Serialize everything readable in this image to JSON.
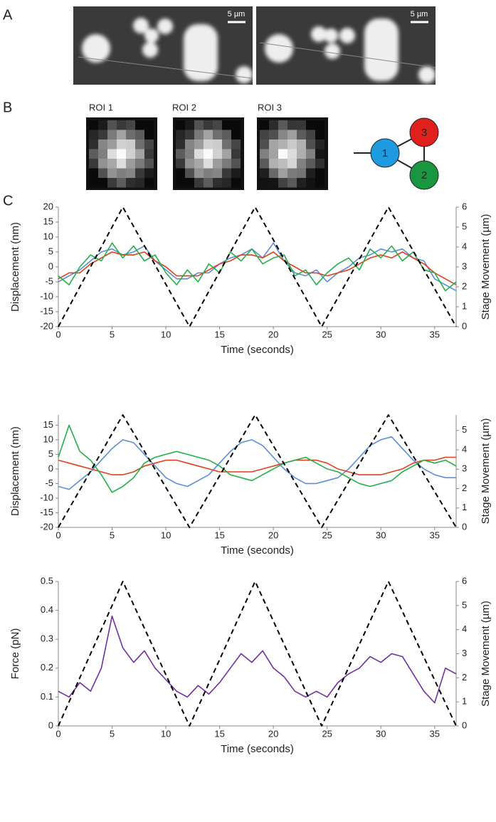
{
  "figure": {
    "panel_labels": [
      "A",
      "B",
      "C"
    ],
    "scale_bars": [
      "5 µm",
      "5 µm"
    ],
    "roi_labels": [
      "ROI 1",
      "ROI 2",
      "ROI 3"
    ],
    "nodes": [
      {
        "label": "1",
        "color": "#1e9be0"
      },
      {
        "label": "3",
        "color": "#e0201c"
      },
      {
        "label": "2",
        "color": "#1a9640"
      }
    ]
  },
  "chart_data": [
    {
      "type": "line",
      "ylabel": "Displacement (nm)",
      "y2label": "Stage Movement (µm)",
      "xlabel": "Time (seconds)",
      "x": [
        0,
        1,
        2,
        3,
        4,
        5,
        6,
        7,
        8,
        9,
        10,
        11,
        12,
        13,
        14,
        15,
        16,
        17,
        18,
        19,
        20,
        21,
        22,
        23,
        24,
        25,
        26,
        27,
        28,
        29,
        30,
        31,
        32,
        33,
        34,
        35,
        36,
        37
      ],
      "xlim": [
        0,
        37
      ],
      "xticks": [
        0,
        5,
        10,
        15,
        20,
        25,
        30,
        35
      ],
      "ylim": [
        -20,
        20
      ],
      "yticks": [
        -20,
        -15,
        -10,
        -5,
        0,
        5,
        10,
        15,
        20
      ],
      "y2lim": [
        0,
        6
      ],
      "y2ticks": [
        0,
        1,
        2,
        3,
        4,
        5,
        6
      ],
      "series": [
        {
          "color": "#5b8ed6",
          "values": [
            -5,
            -3,
            -1,
            2,
            5,
            6,
            4,
            5,
            7,
            2,
            -1,
            -4,
            -4,
            -2,
            -2,
            1,
            3,
            4,
            6,
            3,
            8,
            2,
            -2,
            -3,
            -1,
            -5,
            -2,
            0,
            3,
            4,
            6,
            5,
            6,
            3,
            2,
            -4,
            -6,
            -8
          ]
        },
        {
          "color": "#e0401c",
          "values": [
            -4,
            -2,
            -2,
            1,
            3,
            5,
            4,
            4,
            5,
            2,
            0,
            -3,
            -3,
            -3,
            -1,
            1,
            2,
            4,
            4,
            3,
            5,
            2,
            0,
            -2,
            -2,
            -3,
            -2,
            -1,
            1,
            3,
            4,
            3,
            5,
            3,
            1,
            -2,
            -4,
            -6
          ]
        },
        {
          "color": "#22b04a",
          "values": [
            -3,
            -6,
            0,
            4,
            2,
            8,
            3,
            7,
            2,
            4,
            -2,
            -6,
            -1,
            -5,
            1,
            -2,
            5,
            2,
            6,
            1,
            3,
            4,
            -3,
            -1,
            -6,
            -2,
            1,
            3,
            -1,
            6,
            3,
            7,
            2,
            5,
            -1,
            -2,
            -8,
            -5
          ]
        },
        {
          "color": "#000000",
          "axis": "y2",
          "dash": true,
          "x": [
            0,
            6,
            12.2,
            18.3,
            24.5,
            30.7,
            37
          ],
          "values": [
            0,
            6,
            0,
            6,
            0,
            6,
            0
          ]
        }
      ]
    },
    {
      "type": "line",
      "ylabel": "Displacement (nm)",
      "y2label": "Stage Movement (µm)",
      "xlabel": "Time (seconds)",
      "x": [
        0,
        1,
        2,
        3,
        4,
        5,
        6,
        7,
        8,
        9,
        10,
        11,
        12,
        13,
        14,
        15,
        16,
        17,
        18,
        19,
        20,
        21,
        22,
        23,
        24,
        25,
        26,
        27,
        28,
        29,
        30,
        31,
        32,
        33,
        34,
        35,
        36,
        37
      ],
      "xlim": [
        0,
        37
      ],
      "xticks": [
        0,
        5,
        10,
        15,
        20,
        25,
        30,
        35
      ],
      "ylim": [
        -20,
        18.5
      ],
      "yticks": [
        -20,
        -15,
        -10,
        -5,
        0,
        5,
        10,
        15
      ],
      "y2lim": [
        0,
        5.8
      ],
      "y2ticks": [
        0,
        1,
        2,
        3,
        4,
        5
      ],
      "series": [
        {
          "color": "#5b8ed6",
          "values": [
            -6,
            -7,
            -4,
            -1,
            3,
            7,
            10,
            9,
            5,
            1,
            -3,
            -5,
            -6,
            -4,
            -2,
            2,
            6,
            9,
            10,
            8,
            4,
            0,
            -3,
            -5,
            -5,
            -4,
            -3,
            0,
            4,
            8,
            10,
            11,
            7,
            3,
            0,
            -2,
            -3,
            -3
          ]
        },
        {
          "color": "#e0401c",
          "values": [
            3,
            2,
            1,
            0,
            -1,
            -2,
            -2,
            -1,
            1,
            2,
            3,
            3,
            2,
            1,
            0,
            -1,
            -1,
            -1,
            -1,
            0,
            1,
            2,
            3,
            3,
            3,
            2,
            0,
            -1,
            -2,
            -2,
            -2,
            -1,
            0,
            2,
            3,
            3,
            4,
            4
          ]
        },
        {
          "color": "#22b04a",
          "values": [
            4,
            15,
            6,
            3,
            -2,
            -8,
            -6,
            -3,
            2,
            4,
            5,
            6,
            5,
            4,
            3,
            1,
            -2,
            -3,
            -4,
            -2,
            0,
            2,
            3,
            4,
            2,
            0,
            -1,
            -3,
            -5,
            -6,
            -5,
            -4,
            -1,
            1,
            3,
            2,
            3,
            1
          ]
        },
        {
          "color": "#000000",
          "axis": "y2",
          "dash": true,
          "x": [
            0,
            6,
            12.2,
            18.3,
            24.5,
            30.7,
            37
          ],
          "values": [
            0,
            5.8,
            0,
            5.8,
            0,
            5.8,
            0
          ]
        }
      ]
    },
    {
      "type": "line",
      "ylabel": "Force (pN)",
      "y2label": "Stage Movement (µm)",
      "xlabel": "Time (seconds)",
      "x": [
        0,
        1,
        2,
        3,
        4,
        5,
        6,
        7,
        8,
        9,
        10,
        11,
        12,
        13,
        14,
        15,
        16,
        17,
        18,
        19,
        20,
        21,
        22,
        23,
        24,
        25,
        26,
        27,
        28,
        29,
        30,
        31,
        32,
        33,
        34,
        35,
        36,
        37
      ],
      "xlim": [
        0,
        37
      ],
      "xticks": [
        0,
        5,
        10,
        15,
        20,
        25,
        30,
        35
      ],
      "ylim": [
        0,
        0.5
      ],
      "yticks": [
        0,
        0.1,
        0.2,
        0.3,
        0.4,
        0.5
      ],
      "y2lim": [
        0,
        6
      ],
      "y2ticks": [
        0,
        1,
        2,
        3,
        4,
        5,
        6
      ],
      "series": [
        {
          "color": "#7030a0",
          "values": [
            0.12,
            0.1,
            0.15,
            0.12,
            0.2,
            0.38,
            0.27,
            0.22,
            0.26,
            0.2,
            0.16,
            0.12,
            0.1,
            0.14,
            0.11,
            0.15,
            0.2,
            0.25,
            0.22,
            0.26,
            0.2,
            0.17,
            0.12,
            0.1,
            0.12,
            0.1,
            0.15,
            0.18,
            0.2,
            0.24,
            0.22,
            0.25,
            0.24,
            0.18,
            0.12,
            0.08,
            0.2,
            0.18
          ]
        },
        {
          "color": "#000000",
          "axis": "y2",
          "dash": true,
          "x": [
            0,
            6,
            12.2,
            18.3,
            24.5,
            30.7,
            37
          ],
          "values": [
            0,
            6,
            0,
            6,
            0,
            6,
            0
          ]
        }
      ]
    }
  ]
}
